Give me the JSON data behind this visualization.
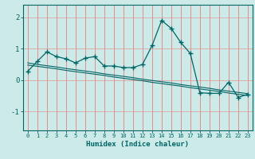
{
  "x": [
    0,
    1,
    2,
    3,
    4,
    5,
    6,
    7,
    8,
    9,
    10,
    11,
    12,
    13,
    14,
    15,
    16,
    17,
    18,
    19,
    20,
    21,
    22,
    23
  ],
  "y_curve": [
    0.28,
    0.6,
    0.9,
    0.75,
    0.68,
    0.55,
    0.7,
    0.75,
    0.45,
    0.45,
    0.4,
    0.4,
    0.5,
    1.1,
    1.9,
    1.65,
    1.2,
    0.85,
    -0.4,
    -0.42,
    -0.42,
    -0.07,
    -0.55,
    -0.45
  ],
  "y_trend1": [
    0.55,
    0.5,
    0.46,
    0.42,
    0.37,
    0.33,
    0.29,
    0.25,
    0.2,
    0.16,
    0.12,
    0.08,
    0.03,
    -0.01,
    -0.05,
    -0.09,
    -0.14,
    -0.18,
    -0.22,
    -0.26,
    -0.31,
    -0.35,
    -0.39,
    -0.43
  ],
  "y_trend2": [
    0.48,
    0.44,
    0.4,
    0.36,
    0.31,
    0.27,
    0.23,
    0.19,
    0.15,
    0.1,
    0.06,
    0.02,
    -0.02,
    -0.07,
    -0.11,
    -0.15,
    -0.19,
    -0.24,
    -0.28,
    -0.32,
    -0.36,
    -0.41,
    -0.45,
    -0.49
  ],
  "bg_color": "#cceae7",
  "grid_color": "#e88080",
  "line_color": "#006666",
  "xlabel": "Humidex (Indice chaleur)",
  "yticks": [
    -1,
    0,
    1,
    2
  ],
  "xticks": [
    0,
    1,
    2,
    3,
    4,
    5,
    6,
    7,
    8,
    9,
    10,
    11,
    12,
    13,
    14,
    15,
    16,
    17,
    18,
    19,
    20,
    21,
    22,
    23
  ],
  "ylim": [
    -1.6,
    2.4
  ],
  "xlim": [
    -0.5,
    23.5
  ]
}
